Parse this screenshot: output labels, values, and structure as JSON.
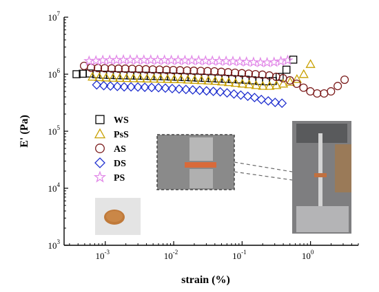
{
  "chart_data": {
    "type": "scatter",
    "title": "",
    "xlabel": "strain (%)",
    "ylabel": "E' (Pa)",
    "xscale": "log",
    "yscale": "log",
    "xlim": [
      0.00025,
      5
    ],
    "ylim": [
      1000,
      10000000
    ],
    "x_ticks": [
      {
        "value": 0.001,
        "base": "10",
        "exp": "-3"
      },
      {
        "value": 0.01,
        "base": "10",
        "exp": "-2"
      },
      {
        "value": 0.1,
        "base": "10",
        "exp": "-1"
      },
      {
        "value": 1,
        "base": "10",
        "exp": "0"
      }
    ],
    "y_ticks": [
      {
        "value": 1000,
        "base": "10",
        "exp": "3"
      },
      {
        "value": 10000,
        "base": "10",
        "exp": "4"
      },
      {
        "value": 100000,
        "base": "10",
        "exp": "5"
      },
      {
        "value": 1000000,
        "base": "10",
        "exp": "6"
      },
      {
        "value": 10000000,
        "base": "10",
        "exp": "7"
      }
    ],
    "grid": false,
    "legend_position": "left",
    "series": [
      {
        "name": "WS",
        "marker": "square",
        "color": "#000000",
        "x": [
          0.00038,
          0.00047,
          0.00059,
          0.00074,
          0.00093,
          0.00117,
          0.00147,
          0.00185,
          0.00233,
          0.00292,
          0.00367,
          0.00461,
          0.00579,
          0.00728,
          0.00915,
          0.0115,
          0.0145,
          0.0182,
          0.0228,
          0.0287,
          0.036,
          0.0453,
          0.0569,
          0.0715,
          0.0899,
          0.113,
          0.142,
          0.178,
          0.224,
          0.282,
          0.354,
          0.445,
          0.56
        ],
        "y": [
          1000000,
          1020000,
          1030000,
          1000000,
          980000,
          970000,
          960000,
          955000,
          950000,
          945000,
          940000,
          930000,
          925000,
          920000,
          910000,
          900000,
          890000,
          880000,
          870000,
          860000,
          850000,
          840000,
          830000,
          820000,
          810000,
          800000,
          780000,
          760000,
          750000,
          760000,
          900000,
          1200000,
          1800000
        ]
      },
      {
        "name": "PsS",
        "marker": "triangle",
        "color": "#c8a000",
        "x": [
          0.00065,
          0.00082,
          0.00103,
          0.0013,
          0.00163,
          0.00205,
          0.00258,
          0.00324,
          0.00408,
          0.00513,
          0.00645,
          0.00811,
          0.0102,
          0.0128,
          0.0161,
          0.0203,
          0.0255,
          0.0321,
          0.0404,
          0.0508,
          0.0639,
          0.0803,
          0.101,
          0.127,
          0.16,
          0.201,
          0.253,
          0.318,
          0.4,
          0.503,
          0.633,
          0.796,
          1.0
        ],
        "y": [
          900000,
          880000,
          870000,
          860000,
          855000,
          850000,
          845000,
          840000,
          835000,
          830000,
          825000,
          820000,
          815000,
          810000,
          800000,
          790000,
          780000,
          770000,
          760000,
          740000,
          720000,
          700000,
          680000,
          660000,
          640000,
          620000,
          620000,
          640000,
          680000,
          730000,
          820000,
          1000000,
          1500000
        ]
      },
      {
        "name": "AS",
        "marker": "circle",
        "color": "#7a1a1a",
        "x": [
          0.00049,
          0.00062,
          0.00078,
          0.00098,
          0.00124,
          0.00156,
          0.00196,
          0.00247,
          0.00311,
          0.00392,
          0.00494,
          0.00622,
          0.00784,
          0.00987,
          0.0124,
          0.0157,
          0.0197,
          0.0249,
          0.0313,
          0.0394,
          0.0497,
          0.0626,
          0.0788,
          0.0993,
          0.125,
          0.157,
          0.198,
          0.25,
          0.315,
          0.396,
          0.499,
          0.628,
          0.79,
          0.995,
          1.25,
          1.58,
          1.99,
          2.5,
          3.15
        ],
        "y": [
          1400000,
          1300000,
          1280000,
          1270000,
          1260000,
          1250000,
          1250000,
          1240000,
          1230000,
          1220000,
          1210000,
          1200000,
          1190000,
          1180000,
          1170000,
          1160000,
          1150000,
          1140000,
          1130000,
          1120000,
          1100000,
          1080000,
          1060000,
          1040000,
          1020000,
          1000000,
          980000,
          950000,
          900000,
          850000,
          780000,
          680000,
          580000,
          500000,
          460000,
          460000,
          500000,
          620000,
          800000
        ]
      },
      {
        "name": "DS",
        "marker": "diamond",
        "color": "#1f2fcf",
        "x": [
          0.00075,
          0.00095,
          0.00119,
          0.0015,
          0.00189,
          0.00238,
          0.003,
          0.00378,
          0.00476,
          0.006,
          0.00756,
          0.00952,
          0.012,
          0.0151,
          0.019,
          0.024,
          0.0302,
          0.038,
          0.0479,
          0.0603,
          0.076,
          0.0957,
          0.121,
          0.152,
          0.191,
          0.241,
          0.304,
          0.383
        ],
        "y": [
          650000,
          630000,
          620000,
          610000,
          600000,
          600000,
          595000,
          590000,
          585000,
          580000,
          570000,
          560000,
          550000,
          540000,
          530000,
          520000,
          510000,
          500000,
          490000,
          470000,
          450000,
          430000,
          410000,
          390000,
          360000,
          340000,
          320000,
          310000
        ]
      },
      {
        "name": "PS",
        "marker": "star",
        "color": "#e28ae8",
        "x": [
          0.00058,
          0.00073,
          0.00092,
          0.00116,
          0.00146,
          0.00184,
          0.00231,
          0.00291,
          0.00367,
          0.00462,
          0.00582,
          0.00733,
          0.00923,
          0.0116,
          0.0146,
          0.0184,
          0.0232,
          0.0292,
          0.0368,
          0.0463,
          0.0583,
          0.0734,
          0.0925,
          0.116,
          0.147,
          0.185,
          0.232,
          0.293,
          0.369,
          0.464
        ],
        "y": [
          1700000,
          1720000,
          1750000,
          1760000,
          1770000,
          1780000,
          1780000,
          1780000,
          1770000,
          1770000,
          1760000,
          1760000,
          1750000,
          1750000,
          1740000,
          1740000,
          1730000,
          1720000,
          1710000,
          1700000,
          1690000,
          1680000,
          1660000,
          1640000,
          1620000,
          1600000,
          1600000,
          1620000,
          1680000,
          1750000
        ]
      }
    ]
  }
}
